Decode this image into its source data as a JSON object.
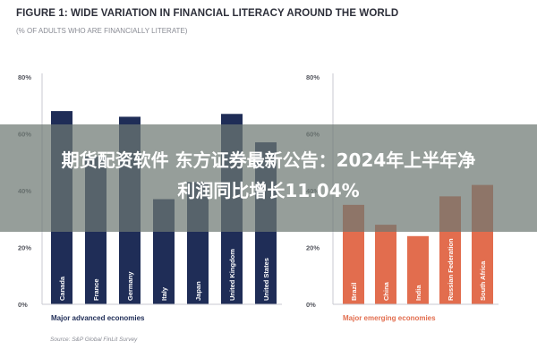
{
  "figure": {
    "title": "FIGURE 1: WIDE VARIATION IN FINANCIAL LITERACY AROUND THE WORLD",
    "subtitle": "(% OF ADULTS WHO ARE FINANCIALLY LITERATE)",
    "source": "Source: S&P Global FinLit Survey"
  },
  "banner": {
    "line1": "期货配资软件 东方证券最新公告：2024年上半年净",
    "line2": "利润同比增长11.04%"
  },
  "colors": {
    "advanced": "#1f2d57",
    "emerging": "#e26d4e",
    "banner": "#6e7873"
  },
  "chart_data": [
    {
      "type": "bar",
      "group": "Major advanced economies",
      "categories": [
        "Canada",
        "France",
        "Germany",
        "Italy",
        "Japan",
        "United Kingdom",
        "United States"
      ],
      "values": [
        68,
        52,
        66,
        37,
        43,
        67,
        57
      ],
      "ylim": [
        0,
        80
      ],
      "yticks": [
        "0%",
        "20%",
        "40%",
        "60%",
        "80%"
      ],
      "grid": false,
      "title": "",
      "xlabel": "Major advanced economies",
      "ylabel": ""
    },
    {
      "type": "bar",
      "group": "Major emerging economies",
      "categories": [
        "Brazil",
        "China",
        "India",
        "Russian Federation",
        "South Africa"
      ],
      "values": [
        35,
        28,
        24,
        38,
        42
      ],
      "ylim": [
        0,
        80
      ],
      "yticks": [
        "0%",
        "20%",
        "40%",
        "60%",
        "80%"
      ],
      "grid": false,
      "title": "",
      "xlabel": "Major emerging economies",
      "ylabel": ""
    }
  ]
}
